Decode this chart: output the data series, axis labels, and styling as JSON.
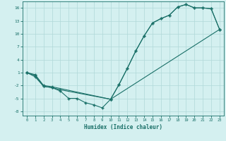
{
  "xlabel": "Humidex (Indice chaleur)",
  "bg_color": "#d4f0f0",
  "grid_color": "#b0d8d8",
  "line_color": "#1a7068",
  "line1_x": [
    0,
    1,
    2,
    3,
    4,
    5,
    6,
    7,
    8,
    9,
    10,
    11,
    12,
    13,
    14,
    15,
    16,
    17,
    18,
    19,
    20,
    21,
    22,
    23
  ],
  "line1_y": [
    1,
    0.0,
    -2.2,
    -2.5,
    -3.3,
    -5.0,
    -5.0,
    -6.0,
    -6.5,
    -7.2,
    -5.2,
    -1.8,
    2.0,
    6.0,
    9.5,
    12.5,
    13.5,
    14.3,
    16.2,
    16.8,
    16.0,
    16.0,
    15.8,
    11.0
  ],
  "line2_x": [
    0,
    1,
    2,
    3,
    4,
    10,
    11,
    12,
    13,
    14,
    15,
    16,
    17,
    18,
    19,
    20,
    21,
    22,
    23
  ],
  "line2_y": [
    1,
    0.3,
    -2.2,
    -2.5,
    -3.0,
    -5.2,
    -1.8,
    2.0,
    6.0,
    9.5,
    12.5,
    13.5,
    14.3,
    16.2,
    16.8,
    16.0,
    16.0,
    15.8,
    11.0
  ],
  "line3_x": [
    0,
    1,
    2,
    3,
    10,
    23
  ],
  "line3_y": [
    1,
    0.5,
    -2.0,
    -2.3,
    -5.2,
    11.0
  ],
  "xlim": [
    -0.5,
    23.5
  ],
  "ylim": [
    -9,
    17.5
  ],
  "xticks": [
    0,
    1,
    2,
    3,
    4,
    5,
    6,
    7,
    8,
    9,
    10,
    11,
    12,
    13,
    14,
    15,
    16,
    17,
    18,
    19,
    20,
    21,
    22,
    23
  ],
  "yticks": [
    -8,
    -5,
    -2,
    1,
    4,
    7,
    10,
    13,
    16
  ]
}
